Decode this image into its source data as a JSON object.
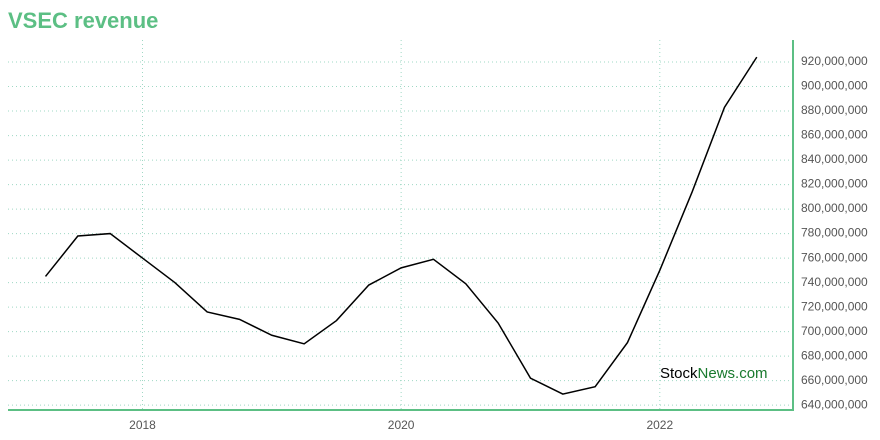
{
  "chart_data": {
    "type": "line",
    "title": "VSEC revenue",
    "x": [
      2017.25,
      2017.5,
      2017.75,
      2018,
      2018.25,
      2018.5,
      2018.75,
      2019,
      2019.25,
      2019.5,
      2019.75,
      2020,
      2020.25,
      2020.5,
      2020.75,
      2021,
      2021.25,
      2021.5,
      2021.75,
      2022,
      2022.25,
      2022.5,
      2022.75
    ],
    "series": [
      {
        "name": "VSEC revenue",
        "color": "#000000",
        "values": [
          745000000,
          778000000,
          780000000,
          760000000,
          740000000,
          716000000,
          710000000,
          697000000,
          690000000,
          709000000,
          738000000,
          752000000,
          759000000,
          739000000,
          707000000,
          662000000,
          649000000,
          655000000,
          691000000,
          750000000,
          814000000,
          883000000,
          924000000
        ]
      }
    ],
    "xlim": [
      2016.96,
      2023.03
    ],
    "xticks": [
      2018,
      2020,
      2022
    ],
    "ylim": [
      636000000,
      938000000
    ],
    "yticks": [
      {
        "value": 640000000,
        "label": "640,000,000"
      },
      {
        "value": 660000000,
        "label": "660,000,000"
      },
      {
        "value": 680000000,
        "label": "680,000,000"
      },
      {
        "value": 700000000,
        "label": "700,000,000"
      },
      {
        "value": 720000000,
        "label": "720,000,000"
      },
      {
        "value": 740000000,
        "label": "740,000,000"
      },
      {
        "value": 760000000,
        "label": "760,000,000"
      },
      {
        "value": 780000000,
        "label": "780,000,000"
      },
      {
        "value": 800000000,
        "label": "800,000,000"
      },
      {
        "value": 820000000,
        "label": "820,000,000"
      },
      {
        "value": 840000000,
        "label": "840,000,000"
      },
      {
        "value": 860000000,
        "label": "860,000,000"
      },
      {
        "value": 880000000,
        "label": "880,000,000"
      },
      {
        "value": 900000000,
        "label": "900,000,000"
      },
      {
        "value": 920000000,
        "label": "920,000,000"
      }
    ],
    "grid": true,
    "axis_color": "#5cbf84",
    "watermark": [
      "Stock",
      "News.com"
    ]
  }
}
